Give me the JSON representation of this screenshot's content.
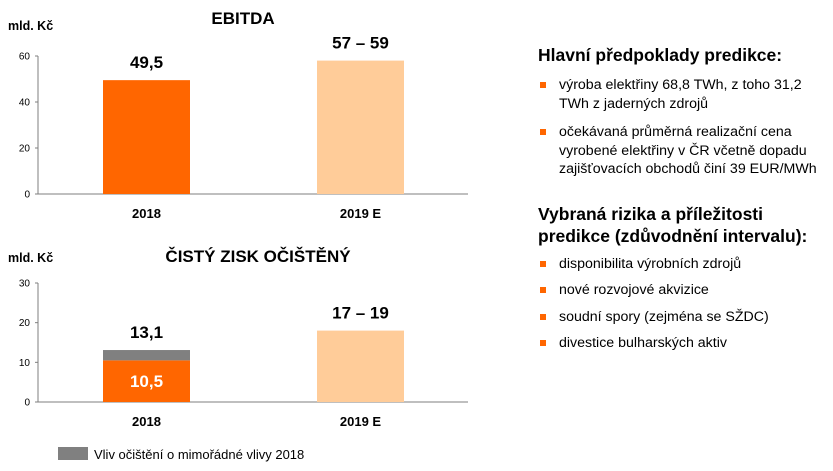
{
  "chart_data": [
    {
      "type": "bar",
      "title": "EBITDA",
      "ylabel": "mld. Kč",
      "ylim": [
        0,
        60
      ],
      "yticks": [
        0,
        20,
        40,
        60
      ],
      "categories": [
        "2018",
        "2019 E"
      ],
      "values": [
        49.5,
        58
      ],
      "value_labels": [
        "49,5",
        "57 – 59"
      ],
      "colors": [
        "#ff6600",
        "#ffcc99"
      ],
      "grid": false
    },
    {
      "type": "bar",
      "stacked": true,
      "title": "ČISTÝ ZISK OČIŠTĚNÝ",
      "ylabel": "mld. Kč",
      "ylim": [
        0,
        30
      ],
      "yticks": [
        0,
        10,
        20,
        30
      ],
      "categories": [
        "2018",
        "2019 E"
      ],
      "series": [
        {
          "values": [
            10.5,
            18
          ],
          "colors": [
            "#ff6600",
            "#ffcc99"
          ]
        },
        {
          "name": "Vliv očištění o mimořádné vlivy 2018",
          "values": [
            2.6,
            0
          ],
          "color": "#808080"
        }
      ],
      "value_labels": [
        "13,1",
        "17 – 19"
      ],
      "inner_labels": [
        "10,5",
        ""
      ],
      "legend": {
        "label": "Vliv očištění o mimořádné vlivy 2018",
        "color": "#808080",
        "placement": "bottom"
      },
      "grid": false
    }
  ],
  "right": {
    "title1": "Hlavní předpoklady predikce:",
    "items1": [
      "výroba elektřiny 68,8 TWh, z toho 31,2 TWh z jaderných zdrojů",
      "očekávaná průměrná realizační cena vyrobené elektřiny v ČR včetně dopadu zajišťovacích obchodů činí 39 EUR/MWh"
    ],
    "title2": "Vybraná rizika a příležitosti predikce (zdůvodnění intervalu):",
    "items2": [
      "disponibilita výrobních zdrojů",
      "nové rozvojové akvizice",
      "soudní spory (zejména se SŽDC)",
      "divestice bulharských aktiv"
    ],
    "bullet_color": "#ff6600"
  }
}
